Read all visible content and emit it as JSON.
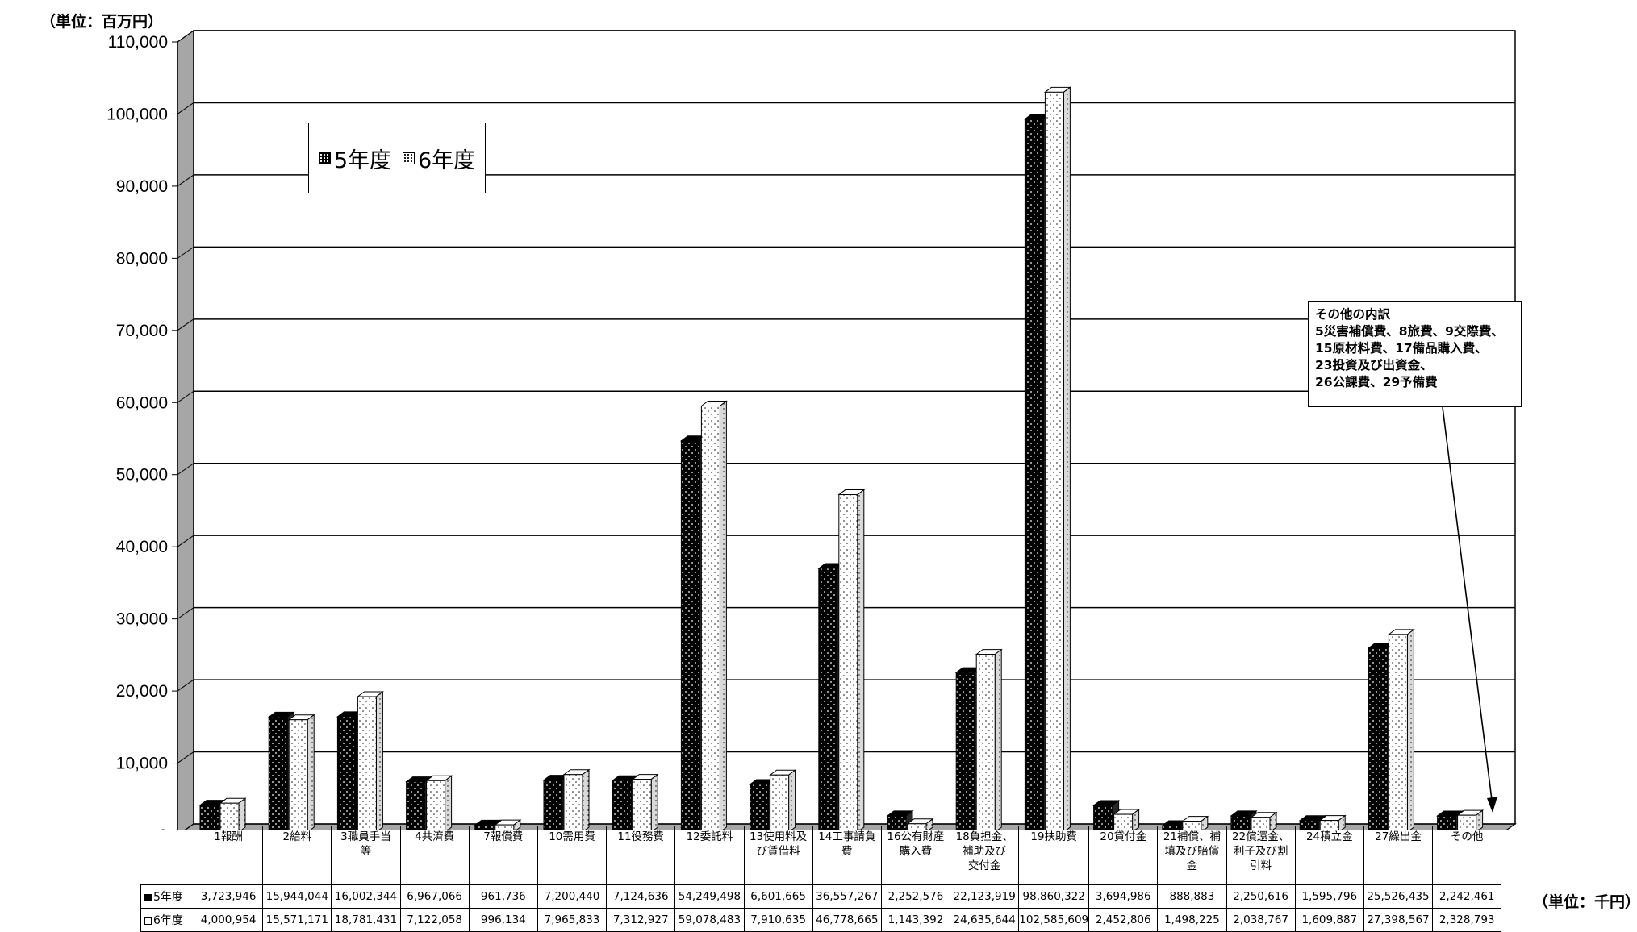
{
  "unit_top": "（単位：百万円）",
  "unit_right": "（単位：千円）",
  "legend": {
    "s5": "5年度",
    "s6": "6年度"
  },
  "note": {
    "lines": [
      "その他の内訳",
      "5災害補償費、8旅費、9交際費、",
      "15原材料費、17備品購入費、",
      "23投資及び出資金、",
      "26公課費、29予備費"
    ]
  },
  "colors": {
    "s5": "#000000",
    "s6": "#ffffff",
    "side": "#bfbfbf",
    "grid": "#000000"
  },
  "chart_data": {
    "type": "bar",
    "ylim": [
      0,
      110000
    ],
    "yticks": [
      "0",
      "10,000",
      "20,000",
      "30,000",
      "40,000",
      "50,000",
      "60,000",
      "70,000",
      "80,000",
      "90,000",
      "100,000",
      "110,000"
    ],
    "categories": [
      "1報酬",
      "2給料",
      "3職員手当等",
      "4共済費",
      "7報償費",
      "10需用費",
      "11役務費",
      "12委託料",
      "13使用料及び賃借料",
      "14工事請負費",
      "16公有財産購入費",
      "18負担金、補助及び交付金",
      "19扶助費",
      "20貸付金",
      "21補償、補填及び賠償金",
      "22償還金、利子及び割引料",
      "24積立金",
      "27繰出金",
      "その他"
    ],
    "category_lines": [
      [
        "1報酬"
      ],
      [
        "2給料"
      ],
      [
        "3職員手当",
        "等"
      ],
      [
        "4共済費"
      ],
      [
        "7報償費"
      ],
      [
        "10需用費"
      ],
      [
        "11役務費"
      ],
      [
        "12委託料"
      ],
      [
        "13使用料及",
        "び賃借料"
      ],
      [
        "14工事請負",
        "費"
      ],
      [
        "16公有財産",
        "購入費"
      ],
      [
        "18負担金、",
        "補助及び",
        "交付金"
      ],
      [
        "19扶助費"
      ],
      [
        "20貸付金"
      ],
      [
        "21補償、補",
        "填及び賠償",
        "金"
      ],
      [
        "22償還金、",
        "利子及び割",
        "引料"
      ],
      [
        "24積立金"
      ],
      [
        "27繰出金"
      ],
      [
        "その他"
      ]
    ],
    "series": [
      {
        "name": "5年度",
        "values": [
          3724,
          15944,
          16002,
          6967,
          962,
          7200,
          7125,
          54249,
          6602,
          36557,
          2253,
          22124,
          98860,
          3695,
          889,
          2251,
          1596,
          25526,
          2242
        ],
        "table_values": [
          "3,723,946",
          "15,944,044",
          "16,002,344",
          "6,967,066",
          "961,736",
          "7,200,440",
          "7,124,636",
          "54,249,498",
          "6,601,665",
          "36,557,267",
          "2,252,576",
          "22,123,919",
          "98,860,322",
          "3,694,986",
          "888,883",
          "2,250,616",
          "1,595,796",
          "25,526,435",
          "2,242,461"
        ]
      },
      {
        "name": "6年度",
        "values": [
          4001,
          15571,
          18781,
          7122,
          996,
          7966,
          7313,
          59078,
          7911,
          46779,
          1143,
          24636,
          102586,
          2453,
          1498,
          2039,
          1610,
          27399,
          2329
        ],
        "table_values": [
          "4,000,954",
          "15,571,171",
          "18,781,431",
          "7,122,058",
          "996,134",
          "7,965,833",
          "7,312,927",
          "59,078,483",
          "7,910,635",
          "46,778,665",
          "1,143,392",
          "24,635,644",
          "102,585,609",
          "2,452,806",
          "1,498,225",
          "2,038,767",
          "1,609,887",
          "27,398,567",
          "2,328,793"
        ]
      }
    ],
    "grid": true,
    "legend_position": "upper-left"
  }
}
